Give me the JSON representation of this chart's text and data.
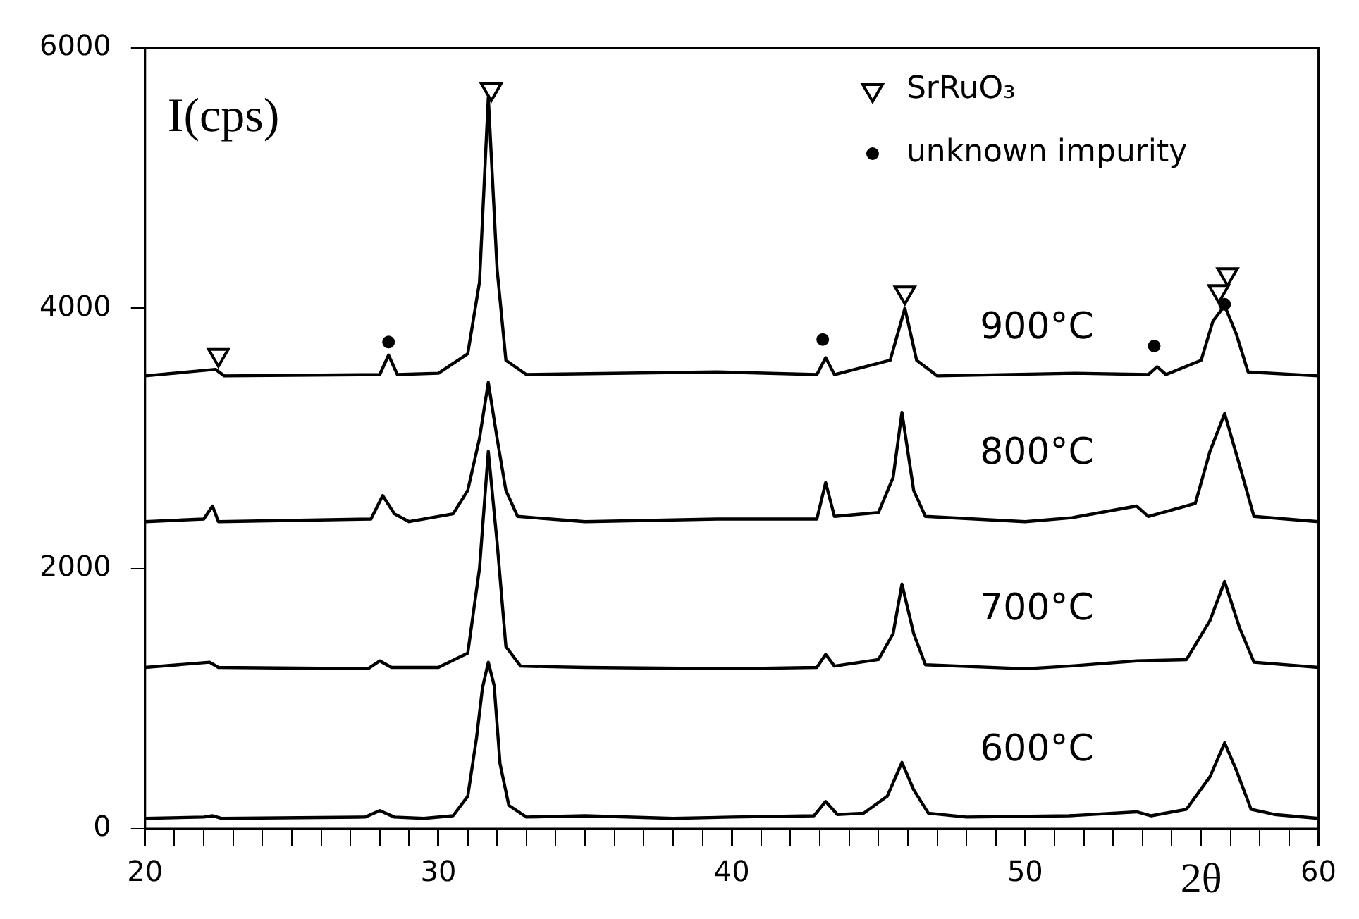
{
  "chart_data": {
    "type": "line",
    "xlabel": "2θ",
    "ylabel": "I(cps)",
    "xlim": [
      20,
      60
    ],
    "ylim": [
      0,
      6000
    ],
    "xticks": [
      20,
      {
        "value": 21,
        "label": null
      },
      {
        "value": 22,
        "label": null
      },
      {
        "value": 23,
        "label": null
      },
      {
        "value": 24,
        "label": null
      },
      {
        "value": 25,
        "label": null
      },
      {
        "value": 26,
        "label": null
      },
      {
        "value": 27,
        "label": null
      },
      {
        "value": 28,
        "label": null
      },
      {
        "value": 29,
        "label": null
      },
      30,
      {
        "value": 31,
        "label": null
      },
      {
        "value": 32,
        "label": null
      },
      {
        "value": 33,
        "label": null
      },
      {
        "value": 34,
        "label": null
      },
      {
        "value": 35,
        "label": null
      },
      {
        "value": 36,
        "label": null
      },
      {
        "value": 37,
        "label": null
      },
      {
        "value": 38,
        "label": null
      },
      {
        "value": 39,
        "label": null
      },
      40,
      {
        "value": 41,
        "label": null
      },
      {
        "value": 42,
        "label": null
      },
      {
        "value": 43,
        "label": null
      },
      {
        "value": 44,
        "label": null
      },
      {
        "value": 45,
        "label": null
      },
      {
        "value": 46,
        "label": null
      },
      {
        "value": 47,
        "label": null
      },
      {
        "value": 48,
        "label": null
      },
      {
        "value": 49,
        "label": null
      },
      50,
      {
        "value": 51,
        "label": null
      },
      {
        "value": 52,
        "label": null
      },
      {
        "value": 53,
        "label": null
      },
      {
        "value": 54,
        "label": null
      },
      {
        "value": 55,
        "label": null
      },
      {
        "value": 56,
        "label": null
      },
      {
        "value": 57,
        "label": null
      },
      {
        "value": 58,
        "label": null
      },
      {
        "value": 59,
        "label": null
      },
      60
    ],
    "yticks": [
      0,
      2000,
      4000,
      6000
    ],
    "grid": false,
    "legend": "top right",
    "line_style": "solid",
    "series": [
      {
        "color": "#000000",
        "x": [
          20,
          22,
          22.3,
          22.6,
          27.5,
          28,
          28.5,
          29.5,
          30.5,
          31,
          31.3,
          31.5,
          31.7,
          31.9,
          32.1,
          32.4,
          33,
          35,
          38,
          40,
          42.8,
          43.2,
          43.6,
          44.5,
          45.3,
          45.8,
          46.2,
          46.7,
          48,
          51.5,
          53.8,
          54.3,
          55.5,
          56.3,
          56.8,
          57.2,
          57.7,
          58.5,
          60
        ],
        "values": [
          80,
          90,
          100,
          80,
          90,
          140,
          90,
          80,
          100,
          250,
          700,
          1080,
          1280,
          1100,
          500,
          180,
          90,
          100,
          80,
          90,
          100,
          210,
          110,
          120,
          250,
          510,
          300,
          120,
          90,
          100,
          130,
          100,
          150,
          400,
          660,
          450,
          150,
          110,
          80
        ]
      },
      {
        "color": "#000000",
        "x": [
          20,
          22.2,
          22.5,
          27.6,
          28,
          28.4,
          30,
          31,
          31.4,
          31.7,
          32,
          32.3,
          32.8,
          35,
          40,
          42.9,
          43.2,
          43.5,
          45,
          45.5,
          45.8,
          46.2,
          46.6,
          50,
          51.5,
          53.8,
          55.5,
          56.3,
          56.8,
          57.3,
          57.8,
          60
        ],
        "values": [
          1240,
          1280,
          1240,
          1230,
          1290,
          1240,
          1240,
          1350,
          2000,
          2900,
          2200,
          1400,
          1250,
          1240,
          1230,
          1240,
          1340,
          1250,
          1300,
          1500,
          1880,
          1500,
          1260,
          1230,
          1250,
          1290,
          1300,
          1600,
          1900,
          1550,
          1280,
          1240
        ]
      },
      {
        "color": "#000000",
        "x": [
          20,
          22,
          22.3,
          22.5,
          27.7,
          28.1,
          28.5,
          29,
          30.5,
          31,
          31.4,
          31.7,
          32,
          32.3,
          32.7,
          35,
          39.5,
          42.9,
          43.2,
          43.5,
          45,
          45.5,
          45.8,
          46.2,
          46.6,
          50,
          51.6,
          53.8,
          54.2,
          55.8,
          56.3,
          56.8,
          57.3,
          57.8,
          60
        ],
        "values": [
          2360,
          2380,
          2480,
          2360,
          2380,
          2560,
          2420,
          2360,
          2420,
          2600,
          3000,
          3430,
          3000,
          2600,
          2400,
          2360,
          2380,
          2380,
          2660,
          2400,
          2430,
          2700,
          3200,
          2600,
          2400,
          2360,
          2390,
          2480,
          2400,
          2500,
          2900,
          3190,
          2800,
          2400,
          2360
        ]
      },
      {
        "color": "#000000",
        "x": [
          20,
          22.4,
          22.7,
          28,
          28.3,
          28.6,
          30,
          31,
          31.4,
          31.7,
          32,
          32.3,
          33,
          39.5,
          42.9,
          43.2,
          43.5,
          45.4,
          45.9,
          46.3,
          47,
          51.7,
          54.2,
          54.5,
          54.8,
          56,
          56.4,
          56.8,
          57.2,
          57.6,
          60
        ],
        "values": [
          3480,
          3530,
          3480,
          3490,
          3640,
          3490,
          3500,
          3650,
          4200,
          5620,
          4300,
          3600,
          3490,
          3510,
          3490,
          3620,
          3490,
          3600,
          4000,
          3600,
          3480,
          3500,
          3490,
          3550,
          3490,
          3600,
          3900,
          4020,
          3800,
          3510,
          3480
        ]
      },
      {
        "type": "scatter",
        "name": "SrRuO₃",
        "color": "#000000",
        "marker": "triangle",
        "x": [
          22.5,
          31.8,
          45.9,
          56.6,
          56.9
        ],
        "values": [
          3640,
          5680,
          4120,
          4130,
          4260
        ]
      },
      {
        "type": "scatter",
        "name": "unknown impurity",
        "color": "#000000",
        "marker": "circle",
        "x": [
          28.3,
          43.1,
          54.4,
          56.8
        ],
        "values": [
          3740,
          3760,
          3710,
          4030
        ]
      }
    ],
    "annotations": [
      "600°C",
      "700°C",
      "800°C",
      "900°C"
    ]
  }
}
